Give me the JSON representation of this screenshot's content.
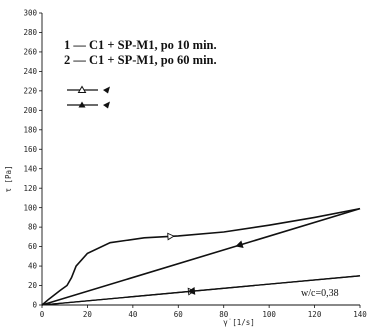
{
  "chart_data": {
    "type": "line",
    "title": "",
    "xlabel": "γ̇ [1/s]",
    "ylabel": "τ [Pa]",
    "xlim": [
      0,
      140
    ],
    "ylim": [
      0,
      300
    ],
    "x_ticks": [
      0,
      20,
      40,
      60,
      80,
      100,
      120,
      140
    ],
    "y_ticks": [
      0,
      20,
      40,
      60,
      80,
      100,
      120,
      140,
      160,
      180,
      200,
      220,
      240,
      260,
      280,
      300
    ],
    "legend": [
      {
        "label": "1 — C1 + SP-M1, po 10 min."
      },
      {
        "label": "2 — C1 + SP-M1, po 60 min."
      }
    ],
    "marker_key": [
      "—∆— ◂",
      "—▲— ◂"
    ],
    "annotation": "w/c=0,38",
    "series": [
      {
        "name": "2 — C1 + SP-M1, po 60 min.",
        "up_x": [
          0,
          3,
          8,
          11,
          13,
          15,
          20,
          30,
          45,
          60,
          80,
          100,
          120,
          140
        ],
        "up_y": [
          0,
          6,
          15,
          20,
          28,
          40,
          53,
          64,
          69,
          71,
          75,
          82,
          90,
          99
        ],
        "down_x": [
          140,
          0
        ],
        "down_y": [
          99,
          0
        ]
      },
      {
        "name": "1 — C1 + SP-M1, po 10 min.",
        "up_x": [
          0,
          140
        ],
        "up_y": [
          0,
          30
        ],
        "down_x": [
          140,
          0
        ],
        "down_y": [
          30,
          0
        ]
      }
    ]
  }
}
